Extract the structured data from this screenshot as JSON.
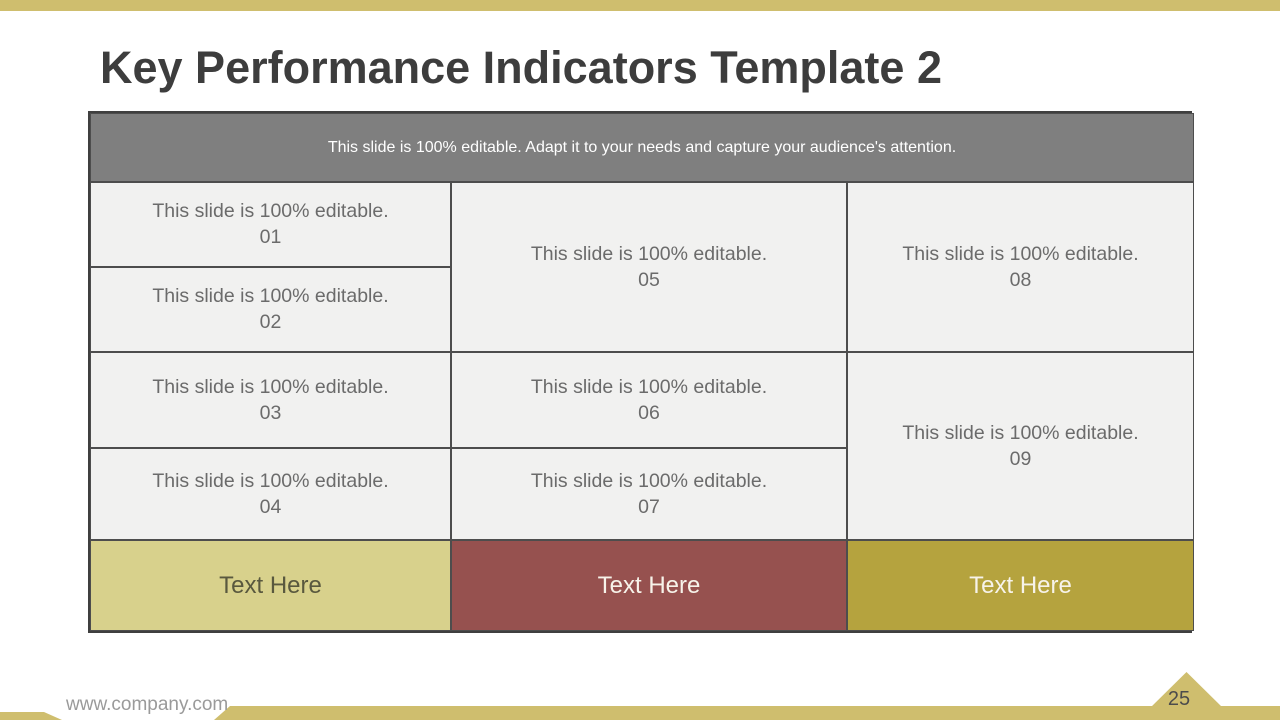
{
  "slide": {
    "title": "Key Performance Indicators Template 2",
    "footer_url": "www.company.com",
    "page_number": "25"
  },
  "table": {
    "header_text": "This slide is 100% editable. Adapt it to your needs and capture your audience's attention.",
    "cells": [
      {
        "text": "This slide is 100% editable.",
        "number": "01"
      },
      {
        "text": "This slide is 100% editable.",
        "number": "02"
      },
      {
        "text": "This slide is 100% editable.",
        "number": "03"
      },
      {
        "text": "This slide is 100% editable.",
        "number": "04"
      },
      {
        "text": "This slide is 100% editable.",
        "number": "05"
      },
      {
        "text": "This slide is 100% editable.",
        "number": "06"
      },
      {
        "text": "This slide is 100% editable.",
        "number": "07"
      },
      {
        "text": "This slide is 100% editable.",
        "number": "08"
      },
      {
        "text": "This slide is 100% editable.",
        "number": "09"
      }
    ],
    "footer_cells": [
      {
        "label": "Text Here"
      },
      {
        "label": "Text Here"
      },
      {
        "label": "Text Here"
      }
    ]
  },
  "colors": {
    "accent_khaki": "#cfbe6e",
    "footer_cell_khaki": "#d8d18c",
    "footer_cell_maroon": "#96514f",
    "footer_cell_gold": "#b5a33e",
    "header_gray": "#7f7f7f",
    "cell_background": "#f1f1f0",
    "title_color": "#3d3d3d"
  }
}
